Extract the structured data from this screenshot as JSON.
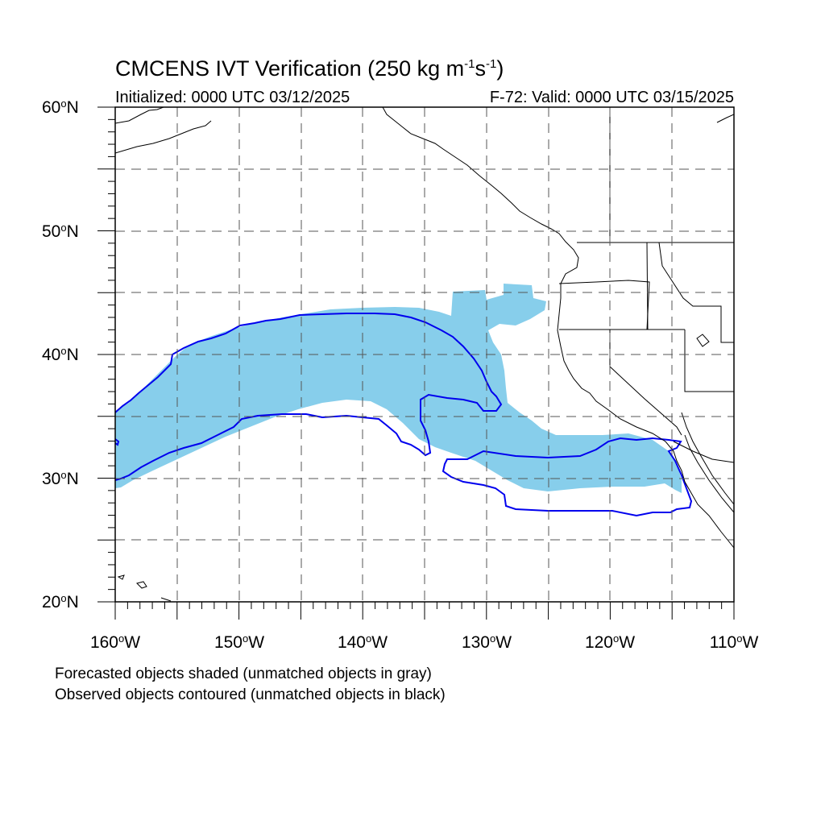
{
  "header": {
    "title_main": "CMCENS IVT Verification (250 kg m",
    "title_exp1": "-1",
    "title_mid": "s",
    "title_exp2": "-1",
    "title_end": ")",
    "initialized": "Initialized: 0000 UTC 03/12/2025",
    "valid": "F-72: Valid: 0000 UTC 03/15/2025"
  },
  "axes": {
    "lat_ticks": [
      {
        "value": "60",
        "suffix": "N"
      },
      {
        "value": "50",
        "suffix": "N"
      },
      {
        "value": "40",
        "suffix": "N"
      },
      {
        "value": "30",
        "suffix": "N"
      },
      {
        "value": "20",
        "suffix": "N"
      }
    ],
    "lon_ticks": [
      {
        "value": "160",
        "suffix": "W"
      },
      {
        "value": "150",
        "suffix": "W"
      },
      {
        "value": "140",
        "suffix": "W"
      },
      {
        "value": "130",
        "suffix": "W"
      },
      {
        "value": "120",
        "suffix": "W"
      },
      {
        "value": "110",
        "suffix": "W"
      }
    ],
    "degree_symbol": "o",
    "lat_range": [
      20,
      60
    ],
    "lon_range": [
      -160,
      -110
    ],
    "gridline_spacing_deg": 5
  },
  "notes": {
    "forecast": "Forecasted objects shaded (unmatched objects in gray)",
    "observed": "Observed objects contoured (unmatched objects in black)"
  },
  "colors": {
    "forecast_fill": "#87ceeb",
    "observed_contour": "#0000ee",
    "coastline": "#000000",
    "grid": "#555555"
  }
}
